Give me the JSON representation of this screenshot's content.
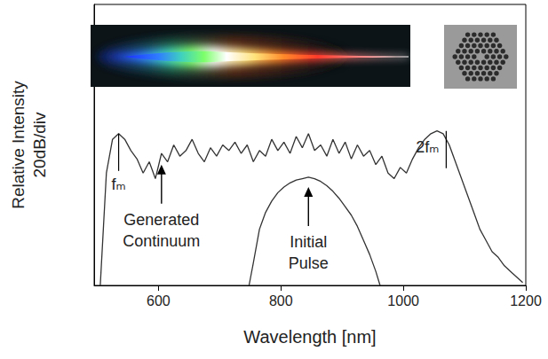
{
  "chart_data": {
    "type": "line",
    "xlabel": "Wavelength [nm]",
    "ylabel": "Relative Intensity\n20dB/div",
    "xlim": [
      495,
      1200
    ],
    "xticks": [
      600,
      800,
      1000,
      1200
    ],
    "ylim": [
      0,
      100
    ],
    "tick_labels": "x",
    "grid": false,
    "series": [
      {
        "color": "#333333",
        "x": [
          505,
          515,
          525,
          535,
          545,
          555,
          565,
          575,
          585,
          595,
          605,
          615,
          625,
          635,
          645,
          655,
          665,
          675,
          685,
          695,
          705,
          715,
          725,
          735,
          745,
          755,
          765,
          775,
          785,
          795,
          805,
          815,
          825,
          835,
          845,
          855,
          865,
          875,
          885,
          895,
          905,
          915,
          925,
          935,
          945,
          955,
          965,
          975,
          985,
          995,
          1005,
          1015,
          1025,
          1035,
          1045,
          1055,
          1065,
          1075,
          1085,
          1095,
          1105,
          1115,
          1125,
          1135,
          1145,
          1155,
          1165,
          1175,
          1185,
          1195
        ],
        "values": [
          0,
          40,
          52,
          54,
          52,
          48,
          45,
          40,
          44,
          38,
          47,
          44,
          50,
          46,
          48,
          52,
          47,
          44,
          49,
          46,
          50,
          48,
          51,
          47,
          50,
          44,
          48,
          46,
          52,
          48,
          51,
          47,
          53,
          49,
          54,
          48,
          50,
          46,
          52,
          47,
          51,
          45,
          50,
          46,
          48,
          43,
          46,
          40,
          38,
          42,
          40,
          45,
          49,
          52,
          54,
          55,
          54,
          50,
          44,
          38,
          32,
          26,
          20,
          16,
          12,
          10,
          7,
          5,
          3,
          1
        ]
      },
      {
        "color": "#333333",
        "x": [
          748,
          755,
          765,
          775,
          785,
          795,
          805,
          815,
          825,
          835,
          845,
          855,
          865,
          875,
          885,
          895,
          905,
          915,
          925,
          935,
          945,
          955,
          962
        ],
        "values": [
          0,
          8,
          20,
          26,
          30,
          33,
          35,
          36.5,
          37.5,
          38,
          38.5,
          38,
          37,
          35.5,
          33.5,
          31,
          28,
          25,
          21,
          16,
          11,
          5,
          0
        ]
      }
    ],
    "annotations": [
      {
        "text": "fₘ",
        "x": 535,
        "y": 54,
        "marker": "line"
      },
      {
        "text": "Generated Continuum",
        "x": 605,
        "y": 43,
        "marker": "arrow"
      },
      {
        "text": "Initial Pulse",
        "x": 845,
        "y": 35,
        "marker": "arrow"
      },
      {
        "text": "2fₘ",
        "x": 1070,
        "y": 55,
        "marker": "line"
      }
    ]
  }
}
